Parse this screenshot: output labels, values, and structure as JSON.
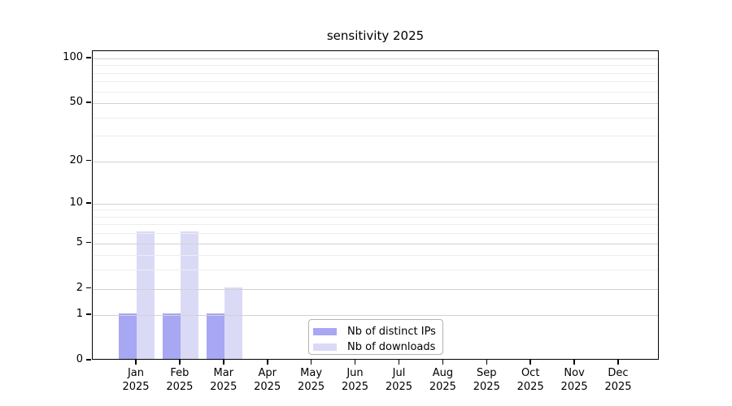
{
  "chart_data": {
    "type": "bar",
    "title": "sensitivity 2025",
    "categories": [
      "Jan",
      "Feb",
      "Mar",
      "Apr",
      "May",
      "Jun",
      "Jul",
      "Aug",
      "Sep",
      "Oct",
      "Nov",
      "Dec"
    ],
    "year_label": "2025",
    "series": [
      {
        "name": "Nb of distinct IPs",
        "color": "#a7a7f4",
        "values": [
          1,
          1,
          1,
          0,
          0,
          0,
          0,
          0,
          0,
          0,
          0,
          0
        ]
      },
      {
        "name": "Nb of downloads",
        "color": "#dadaf7",
        "values": [
          6,
          6,
          2,
          0,
          0,
          0,
          0,
          0,
          0,
          0,
          0,
          0
        ]
      }
    ],
    "xlabel": "",
    "ylabel": "",
    "y_axis": {
      "scale": "log1p",
      "major_ticks": [
        0,
        1,
        2,
        5,
        10,
        20,
        50,
        100
      ],
      "minor_gridlines": [
        3,
        4,
        6,
        7,
        8,
        9,
        30,
        40,
        60,
        70,
        80,
        90
      ],
      "ylim": [
        0,
        110
      ]
    },
    "grid": "horizontal",
    "legend_position": "bottom-center-inside"
  },
  "legend": {
    "items": [
      {
        "label": "Nb of distinct IPs"
      },
      {
        "label": "Nb of downloads"
      }
    ]
  }
}
